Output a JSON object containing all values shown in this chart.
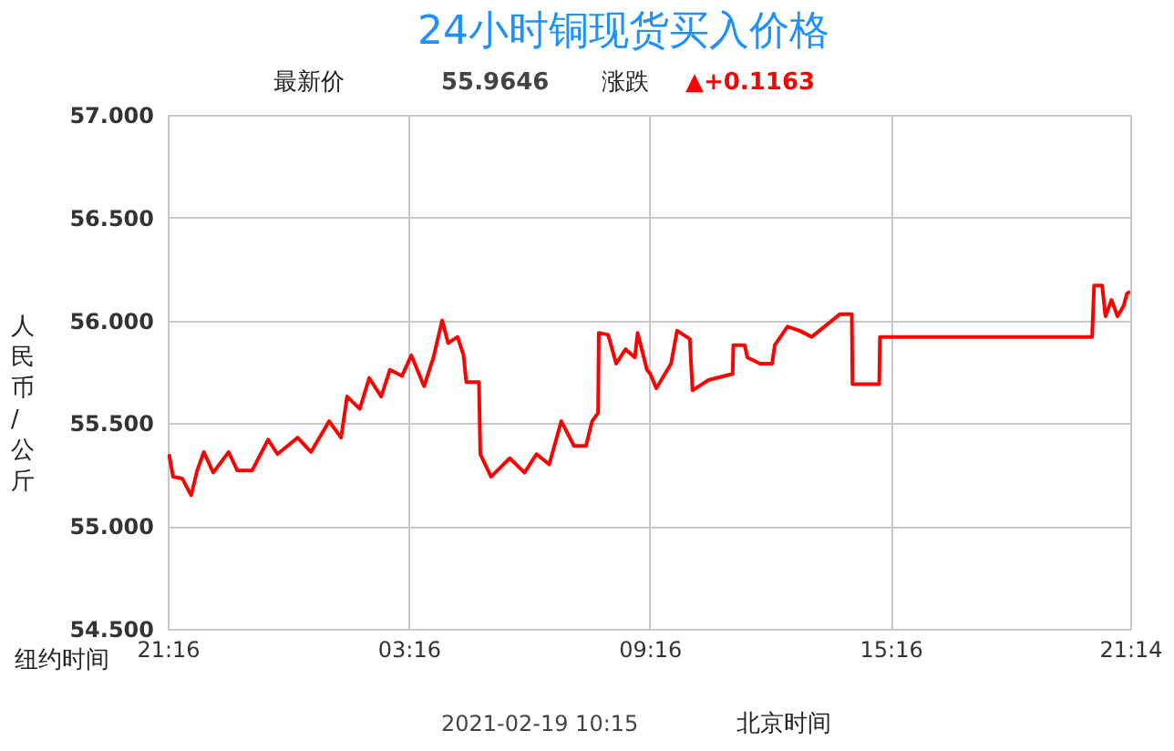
{
  "chart_data": {
    "type": "line",
    "title": "24小时铜现货买入价格",
    "ylabel": "人民币/公斤",
    "annotations": [
      "最新价",
      "55.9646",
      "涨跌",
      "▲+0.1163",
      "纽约时间",
      "2021-02-19 10:15",
      "北京时间"
    ],
    "x": [
      "2021-02-17T21:18",
      "2021-02-17T21:24",
      "2021-02-17T21:38",
      "2021-02-17T21:51",
      "2021-02-17T22:00",
      "2021-02-17T22:10",
      "2021-02-17T22:24",
      "2021-02-17T22:47",
      "2021-02-17T23:00",
      "2021-02-17T23:22",
      "2021-02-17T23:46",
      "2021-02-18T00:00",
      "2021-02-18T00:30",
      "2021-02-18T00:50",
      "2021-02-18T01:17",
      "2021-02-18T01:35",
      "2021-02-18T01:44",
      "2021-02-18T02:03",
      "2021-02-18T02:17",
      "2021-02-18T02:35",
      "2021-02-18T02:48",
      "2021-02-18T03:06",
      "2021-02-18T03:20",
      "2021-02-18T03:39",
      "2021-02-18T03:53",
      "2021-02-18T04:06",
      "2021-02-18T04:15",
      "2021-02-18T04:29",
      "2021-02-18T04:38",
      "2021-02-18T04:42",
      "2021-02-18T05:01",
      "2021-02-18T05:03",
      "2021-02-18T05:19",
      "2021-02-18T05:47",
      "2021-02-18T06:09",
      "2021-02-18T06:27",
      "2021-02-18T06:46",
      "2021-02-18T07:04",
      "2021-02-18T07:23",
      "2021-02-18T07:41",
      "2021-02-18T07:50",
      "2021-02-18T07:59",
      "2021-02-18T08:00",
      "2021-02-18T08:14",
      "2021-02-18T08:26",
      "2021-02-18T08:40",
      "2021-02-18T08:54",
      "2021-02-18T08:58",
      "2021-02-18T09:12",
      "2021-02-18T09:17",
      "2021-02-18T09:26",
      "2021-02-18T09:48",
      "2021-02-18T09:57",
      "2021-02-18T10:16",
      "2021-02-18T10:20",
      "2021-02-18T10:44",
      "2021-02-18T11:20",
      "2021-02-18T11:21",
      "2021-02-18T11:38",
      "2021-02-18T11:42",
      "2021-02-18T12:01",
      "2021-02-18T12:19",
      "2021-02-18T12:23",
      "2021-02-18T12:42",
      "2021-02-18T13:00",
      "2021-02-18T13:18",
      "2021-02-18T13:41",
      "2021-02-18T14:00",
      "2021-02-18T14:18",
      "2021-02-18T14:19",
      "2021-02-18T14:59",
      "2021-02-18T15:00",
      "2021-02-18T20:17",
      "2021-02-18T20:20",
      "2021-02-18T20:32",
      "2021-02-18T20:37",
      "2021-02-18T20:46",
      "2021-02-18T20:55",
      "2021-02-18T21:04",
      "2021-02-18T21:09",
      "2021-02-18T21:14"
    ],
    "series": [
      {
        "color": "#ff0000",
        "values": [
          55.35,
          55.24,
          55.23,
          55.15,
          55.27,
          55.36,
          55.26,
          55.36,
          55.27,
          55.27,
          55.42,
          55.35,
          55.43,
          55.36,
          55.51,
          55.43,
          55.63,
          55.57,
          55.72,
          55.63,
          55.76,
          55.73,
          55.83,
          55.68,
          55.82,
          56.0,
          55.89,
          55.92,
          55.83,
          55.7,
          55.7,
          55.35,
          55.24,
          55.33,
          55.26,
          55.35,
          55.3,
          55.51,
          55.39,
          55.39,
          55.51,
          55.55,
          55.94,
          55.93,
          55.79,
          55.86,
          55.82,
          55.94,
          55.76,
          55.74,
          55.67,
          55.79,
          55.95,
          55.91,
          55.66,
          55.71,
          55.74,
          55.88,
          55.88,
          55.82,
          55.79,
          55.79,
          55.88,
          55.97,
          55.95,
          55.92,
          55.98,
          56.03,
          56.03,
          55.69,
          55.69,
          55.92,
          55.92,
          56.17,
          56.17,
          56.02,
          56.1,
          56.02,
          56.07,
          56.13,
          56.14
        ]
      }
    ],
    "xlim": [
      "2021-02-17T21:16",
      "2021-02-18T21:14"
    ],
    "xticks": [
      {
        "value": "2021-02-17T21:16",
        "label": "21:16"
      },
      {
        "value": "2021-02-18T03:16",
        "label": "03:16"
      },
      {
        "value": "2021-02-18T09:16",
        "label": "09:16"
      },
      {
        "value": "2021-02-18T15:16",
        "label": "15:16"
      },
      {
        "value": "2021-02-18T21:14",
        "label": "21:14"
      }
    ],
    "ylim": [
      54.5,
      57
    ],
    "yticks": [
      {
        "value": 54.5,
        "label": "54.500"
      },
      {
        "value": 55,
        "label": "55.000"
      },
      {
        "value": 55.5,
        "label": "55.500"
      },
      {
        "value": 56,
        "label": "56.000"
      },
      {
        "value": 56.5,
        "label": "56.500"
      },
      {
        "value": 57,
        "label": "57.000"
      }
    ],
    "grid": true,
    "marker": "none",
    "line_style": "solid"
  }
}
